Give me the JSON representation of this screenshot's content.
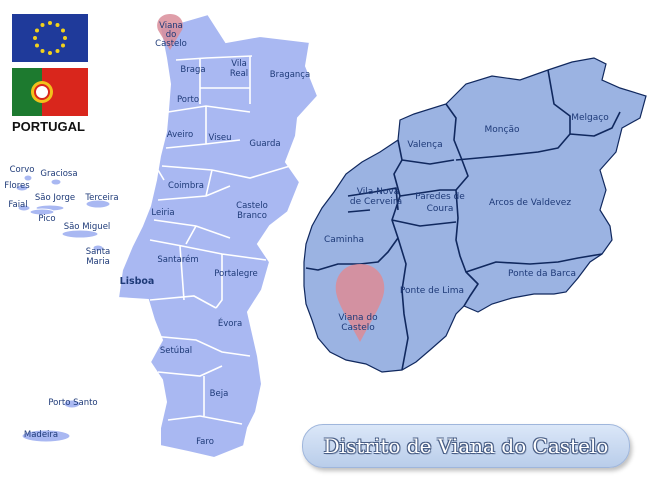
{
  "flags": {
    "country_label": "PORTUGAL"
  },
  "title": "Distrito de Viana do Castelo",
  "colors": {
    "land": "#a9b8f2",
    "land_detail": "#9bb3e2",
    "borders": "#ffffff",
    "inner_borders": "#10285e",
    "highlight": "#d98d9a",
    "text": "#1e3a78"
  },
  "portugal_districts": [
    "Braga",
    "Vila Real",
    "Bragança",
    "Porto",
    "Aveiro",
    "Viseu",
    "Guarda",
    "Coimbra",
    "Leiria",
    "Castelo Branco",
    "Santarém",
    "Portalegre",
    "Lisboa",
    "Évora",
    "Setúbal",
    "Beja",
    "Faro"
  ],
  "highlighted_district": "Viana do Castelo",
  "azores_islands": [
    "Corvo",
    "Graciosa",
    "Flores",
    "São Jorge",
    "Terceira",
    "Faial",
    "Pico",
    "São Miguel",
    "Santa Maria"
  ],
  "madeira_islands": [
    "Porto Santo",
    "Madeira"
  ],
  "municipalities": [
    "Melgaço",
    "Monção",
    "Valença",
    "Vila Nova de Cerveira",
    "Paredes de Coura",
    "Arcos de Valdevez",
    "Caminha",
    "Ponte da Barca",
    "Ponte de Lima",
    "Viana do Castelo"
  ],
  "pin_labels": {
    "small": "Viana do Castelo",
    "large": "Viana do Castelo"
  }
}
